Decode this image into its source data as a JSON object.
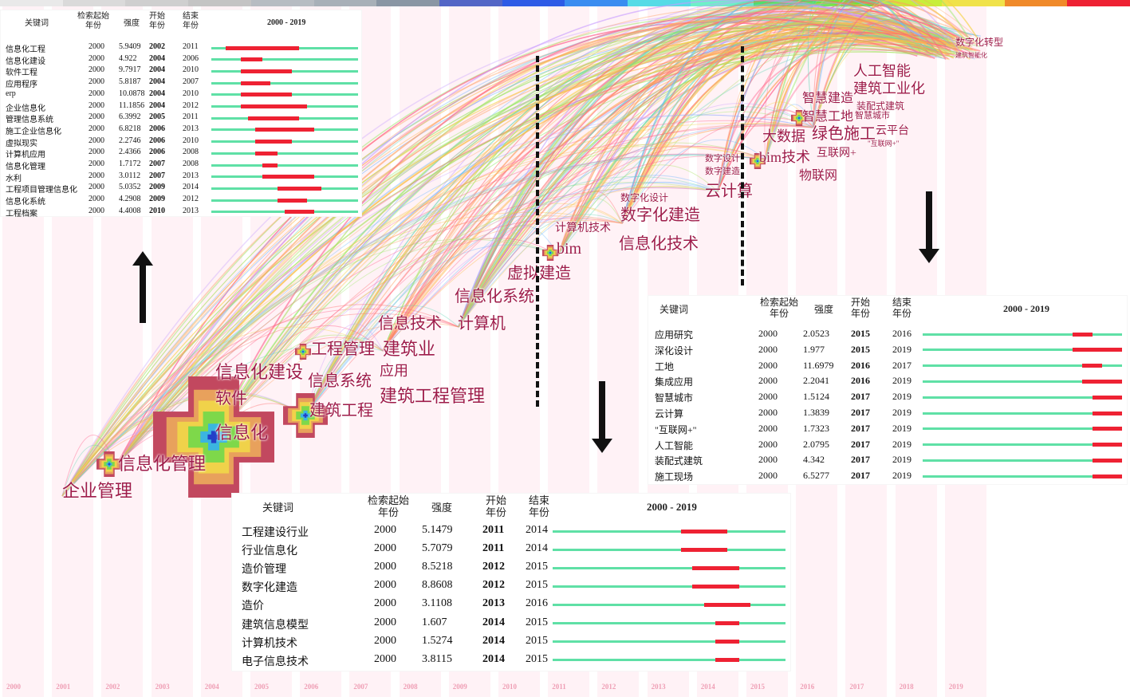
{
  "timeline": {
    "years": [
      "2000",
      "2001",
      "2002",
      "2003",
      "2004",
      "2005",
      "2006",
      "2007",
      "2008",
      "2009",
      "2010",
      "2011",
      "2012",
      "2013",
      "2014",
      "2015",
      "2016",
      "2017",
      "2018",
      "2019"
    ]
  },
  "colorbar": [
    "#e9e9e9",
    "#dadada",
    "#cfcfcf",
    "#c4c4c4",
    "#b7bcc2",
    "#a8b0b8",
    "#8a96a4",
    "#5366c6",
    "#2e5be6",
    "#3a8df0",
    "#56dbe6",
    "#6ef0c8",
    "#4ee06a",
    "#6ae83a",
    "#c8ee3a",
    "#f0e24a",
    "#f08a2a",
    "#ee2233"
  ],
  "keywords": [
    {
      "text": "企业管理"
    },
    {
      "text": "信息化管理"
    },
    {
      "text": "信息化"
    },
    {
      "text": "软件"
    },
    {
      "text": "信息化建设"
    },
    {
      "text": "建筑工程"
    },
    {
      "text": "信息系统"
    },
    {
      "text": "工程管理"
    },
    {
      "text": "应用"
    },
    {
      "text": "建筑业"
    },
    {
      "text": "建筑工程管理"
    },
    {
      "text": "信息技术"
    },
    {
      "text": "计算机"
    },
    {
      "text": "信息化系统"
    },
    {
      "text": "虚拟建造"
    },
    {
      "text": "计算机技术"
    },
    {
      "text": "bim"
    },
    {
      "text": "信息化技术"
    },
    {
      "text": "数字化设计"
    },
    {
      "text": "数字化建造"
    },
    {
      "text": "数字设计"
    },
    {
      "text": "数字建造"
    },
    {
      "text": "云计算"
    },
    {
      "text": "bim技术"
    },
    {
      "text": "互联网+"
    },
    {
      "text": "物联网"
    },
    {
      "text": "大数据"
    },
    {
      "text": "绿色施工"
    },
    {
      "text": "云平台"
    },
    {
      "text": "\"互联网+\""
    },
    {
      "text": "智慧工地"
    },
    {
      "text": "智慧城市"
    },
    {
      "text": "智慧建造"
    },
    {
      "text": "装配式建筑"
    },
    {
      "text": "建筑工业化"
    },
    {
      "text": "人工智能"
    },
    {
      "text": "数字化转型"
    },
    {
      "text": "建筑智能化"
    }
  ],
  "burst_tables": [
    {
      "headers": {
        "keyword": "关键词",
        "begin": "检索起始\n年份",
        "strength": "强度",
        "start": "开始\n年份",
        "end": "结束\n年份",
        "range": "2000 - 2019"
      },
      "rows": [
        {
          "keyword": "信息化工程",
          "begin": "2000",
          "strength": "5.9409",
          "start": "2002",
          "end": "2011"
        },
        {
          "keyword": "信息化建设",
          "begin": "2000",
          "strength": "4.922",
          "start": "2004",
          "end": "2006"
        },
        {
          "keyword": "软件工程",
          "begin": "2000",
          "strength": "9.7917",
          "start": "2004",
          "end": "2010"
        },
        {
          "keyword": "应用程序",
          "begin": "2000",
          "strength": "5.8187",
          "start": "2004",
          "end": "2007"
        },
        {
          "keyword": "erp",
          "begin": "2000",
          "strength": "10.0878",
          "start": "2004",
          "end": "2010"
        },
        {
          "keyword": "企业信息化",
          "begin": "2000",
          "strength": "11.1856",
          "start": "2004",
          "end": "2012"
        },
        {
          "keyword": "管理信息系统",
          "begin": "2000",
          "strength": "6.3992",
          "start": "2005",
          "end": "2011"
        },
        {
          "keyword": "施工企业信息化",
          "begin": "2000",
          "strength": "6.8218",
          "start": "2006",
          "end": "2013"
        },
        {
          "keyword": "虚拟现实",
          "begin": "2000",
          "strength": "2.2746",
          "start": "2006",
          "end": "2010"
        },
        {
          "keyword": "计算机应用",
          "begin": "2000",
          "strength": "2.4366",
          "start": "2006",
          "end": "2008"
        },
        {
          "keyword": "信息化管理",
          "begin": "2000",
          "strength": "1.7172",
          "start": "2007",
          "end": "2008"
        },
        {
          "keyword": "水利",
          "begin": "2000",
          "strength": "3.0112",
          "start": "2007",
          "end": "2013"
        },
        {
          "keyword": "工程项目管理信息化",
          "begin": "2000",
          "strength": "5.0352",
          "start": "2009",
          "end": "2014"
        },
        {
          "keyword": "信息化系统",
          "begin": "2000",
          "strength": "4.2908",
          "start": "2009",
          "end": "2012"
        },
        {
          "keyword": "工程档案",
          "begin": "2000",
          "strength": "4.4008",
          "start": "2010",
          "end": "2013"
        }
      ]
    },
    {
      "headers": {
        "keyword": "关键词",
        "begin": "检索起始\n年份",
        "strength": "强度",
        "start": "开始\n年份",
        "end": "结束\n年份",
        "range": "2000 - 2019"
      },
      "rows": [
        {
          "keyword": "工程建设行业",
          "begin": "2000",
          "strength": "5.1479",
          "start": "2011",
          "end": "2014"
        },
        {
          "keyword": "行业信息化",
          "begin": "2000",
          "strength": "5.7079",
          "start": "2011",
          "end": "2014"
        },
        {
          "keyword": "造价管理",
          "begin": "2000",
          "strength": "8.5218",
          "start": "2012",
          "end": "2015"
        },
        {
          "keyword": "数字化建造",
          "begin": "2000",
          "strength": "8.8608",
          "start": "2012",
          "end": "2015"
        },
        {
          "keyword": "造价",
          "begin": "2000",
          "strength": "3.1108",
          "start": "2013",
          "end": "2016"
        },
        {
          "keyword": "建筑信息模型",
          "begin": "2000",
          "strength": "1.607",
          "start": "2014",
          "end": "2015"
        },
        {
          "keyword": "计算机技术",
          "begin": "2000",
          "strength": "1.5274",
          "start": "2014",
          "end": "2015"
        },
        {
          "keyword": "电子信息技术",
          "begin": "2000",
          "strength": "3.8115",
          "start": "2014",
          "end": "2015"
        }
      ]
    },
    {
      "headers": {
        "keyword": "关键词",
        "begin": "检索起始\n年份",
        "strength": "强度",
        "start": "开始\n年份",
        "end": "结束\n年份",
        "range": "2000 - 2019"
      },
      "rows": [
        {
          "keyword": "应用研究",
          "begin": "2000",
          "strength": "2.0523",
          "start": "2015",
          "end": "2016"
        },
        {
          "keyword": "深化设计",
          "begin": "2000",
          "strength": "1.977",
          "start": "2015",
          "end": "2019"
        },
        {
          "keyword": "工地",
          "begin": "2000",
          "strength": "11.6979",
          "start": "2016",
          "end": "2017"
        },
        {
          "keyword": "集成应用",
          "begin": "2000",
          "strength": "2.2041",
          "start": "2016",
          "end": "2019"
        },
        {
          "keyword": "智慧城市",
          "begin": "2000",
          "strength": "1.5124",
          "start": "2017",
          "end": "2019"
        },
        {
          "keyword": "云计算",
          "begin": "2000",
          "strength": "1.3839",
          "start": "2017",
          "end": "2019"
        },
        {
          "keyword": "\"互联网+\"",
          "begin": "2000",
          "strength": "1.7323",
          "start": "2017",
          "end": "2019"
        },
        {
          "keyword": "人工智能",
          "begin": "2000",
          "strength": "2.0795",
          "start": "2017",
          "end": "2019"
        },
        {
          "keyword": "装配式建筑",
          "begin": "2000",
          "strength": "4.342",
          "start": "2017",
          "end": "2019"
        },
        {
          "keyword": "施工现场",
          "begin": "2000",
          "strength": "6.5277",
          "start": "2017",
          "end": "2019"
        }
      ]
    }
  ]
}
